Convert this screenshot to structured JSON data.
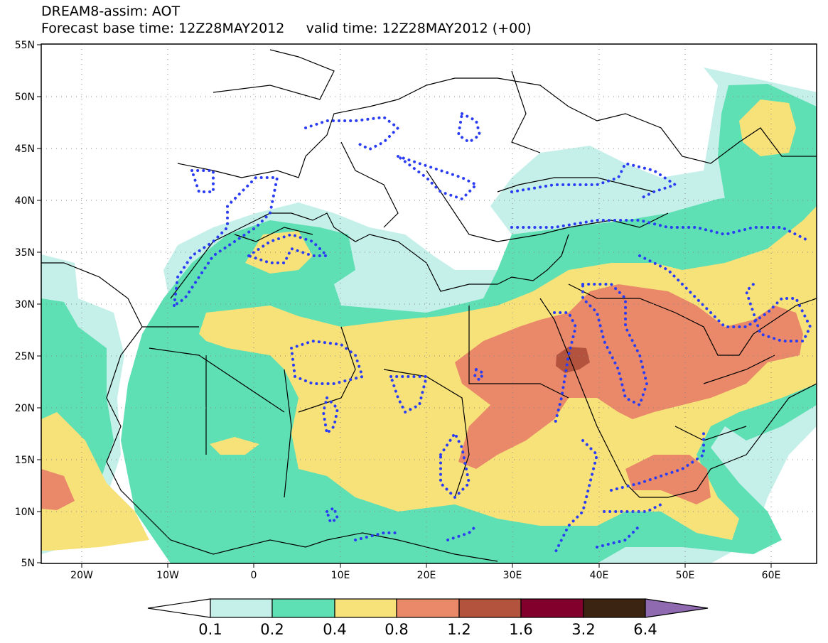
{
  "title": {
    "line1": "DREAM8-assim: AOT",
    "line2": "Forecast base time: 12Z28MAY2012     valid time: 12Z28MAY2012 (+00)"
  },
  "lat_labels": [
    "55N",
    "50N",
    "45N",
    "40N",
    "35N",
    "30N",
    "25N",
    "20N",
    "15N",
    "10N",
    "5N"
  ],
  "lon_labels": [
    "20W",
    "10W",
    "0",
    "10E",
    "20E",
    "30E",
    "40E",
    "50E",
    "60E"
  ],
  "colorbar": {
    "labels": [
      "0.1",
      "0.2",
      "0.4",
      "0.8",
      "1.2",
      "1.6",
      "3.2",
      "6.4"
    ],
    "colors": [
      "#ffffff",
      "#c5f0ea",
      "#5fe0b4",
      "#f7e27a",
      "#e9896a",
      "#b3533e",
      "#82002c",
      "#3c2413",
      "#8f6ab0"
    ]
  },
  "colors": {
    "land_outline": "#000000",
    "contour_dotted": "#2b3df2",
    "grid": "#888888"
  }
}
